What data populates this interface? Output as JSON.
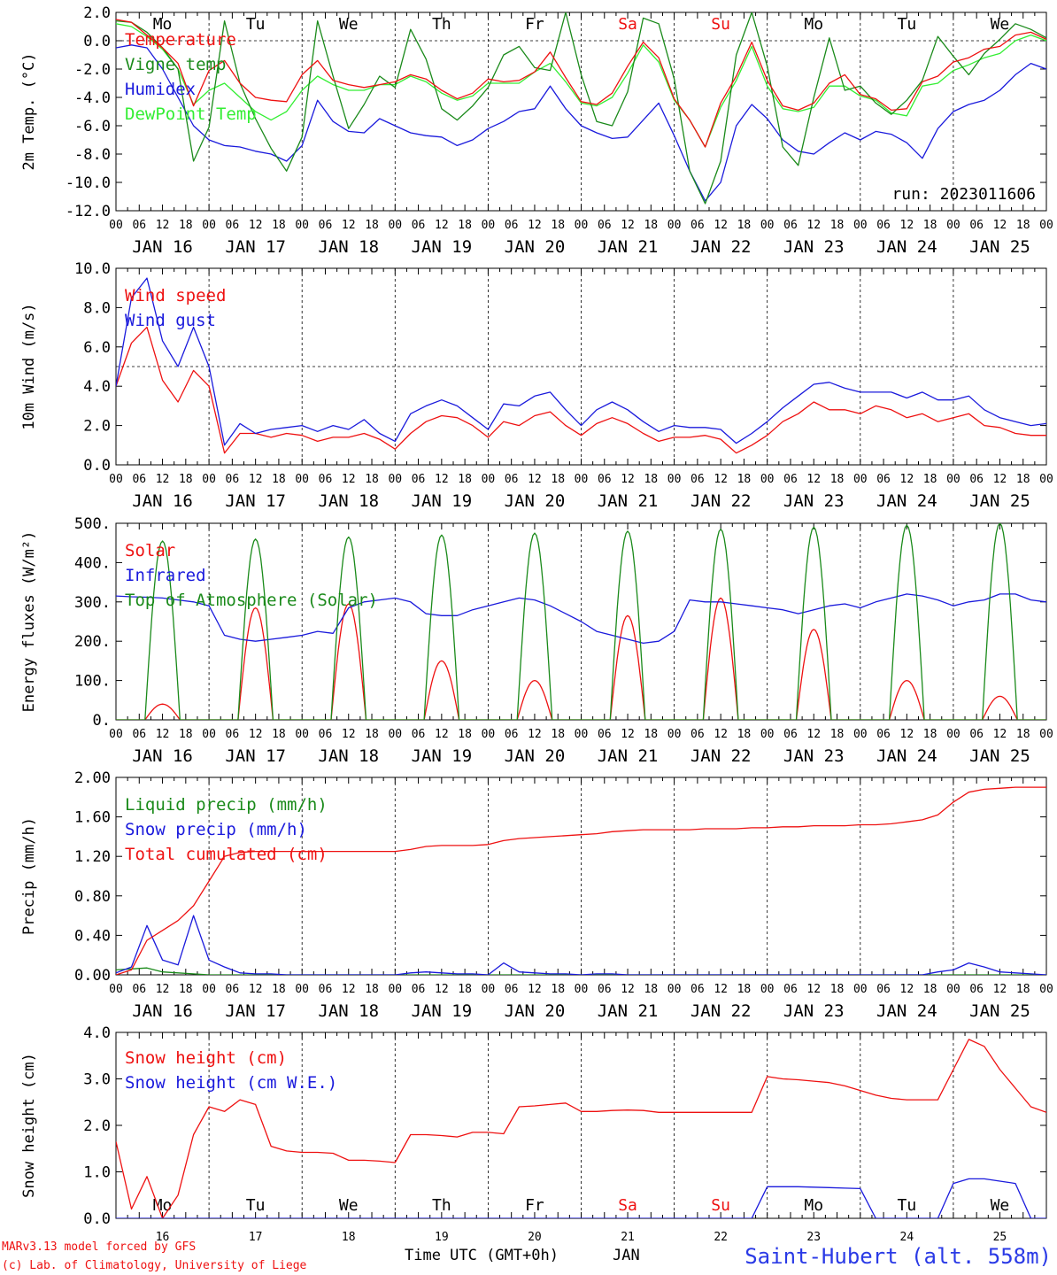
{
  "colors": {
    "red": "#ee1111",
    "green": "#1a8a1a",
    "blue": "#1a1adc",
    "lightgreen": "#33ee33",
    "axis": "#000000",
    "weekend": "#ee1111",
    "station": "#2a3ae6"
  },
  "time_axis": {
    "hour_ticks": [
      "00",
      "06",
      "12",
      "18"
    ],
    "final_tick": "00",
    "dates": [
      "JAN 16",
      "JAN 17",
      "JAN 18",
      "JAN 19",
      "JAN 20",
      "JAN 21",
      "JAN 22",
      "JAN 23",
      "JAN 24",
      "JAN 25"
    ],
    "weekdays": [
      {
        "label": "Mo",
        "weekend": false
      },
      {
        "label": "Tu",
        "weekend": false
      },
      {
        "label": "We",
        "weekend": false
      },
      {
        "label": "Th",
        "weekend": false
      },
      {
        "label": "Fr",
        "weekend": false
      },
      {
        "label": "Sa",
        "weekend": true
      },
      {
        "label": "Su",
        "weekend": true
      },
      {
        "label": "Mo",
        "weekend": false
      },
      {
        "label": "Tu",
        "weekend": false
      },
      {
        "label": "We",
        "weekend": false
      }
    ],
    "day_numbers": [
      "16",
      "17",
      "18",
      "19",
      "20",
      "21",
      "22",
      "23",
      "24",
      "25"
    ],
    "xlabel": "Time UTC (GMT+0h)",
    "month_label": "JAN"
  },
  "footer": {
    "model_line": "MARv3.13 model forced by GFS",
    "credit_line": "(c) Lab. of Climatology, University of Liege",
    "station": "Saint-Hubert (alt. 558m)"
  },
  "chart_data": [
    {
      "type": "line",
      "ylabel": "2m Temp. (°C)",
      "ylim": [
        -12,
        2
      ],
      "yticks": [
        "2.0",
        "0.0",
        "-2.0",
        "-4.0",
        "-6.0",
        "-8.0",
        "-10.0",
        "-12.0"
      ],
      "reference_line": 0,
      "annotation": "run: 2023011606",
      "legend_placement": "top-left",
      "series": [
        {
          "name": "Temperature",
          "color": "red",
          "values": [
            1.5,
            1.3,
            0.4,
            -0.5,
            -1.6,
            -4.6,
            -2.1,
            -1.4,
            -3.0,
            -4.0,
            -4.2,
            -4.3,
            -2.4,
            -1.4,
            -2.8,
            -3.1,
            -3.3,
            -3.1,
            -2.9,
            -2.4,
            -2.7,
            -3.5,
            -4.1,
            -3.7,
            -2.7,
            -2.9,
            -2.8,
            -2.2,
            -0.8,
            -2.6,
            -4.3,
            -4.5,
            -3.7,
            -1.8,
            -0.1,
            -1.2,
            -4.1,
            -5.6,
            -7.5,
            -4.4,
            -2.5,
            -0.1,
            -2.8,
            -4.6,
            -4.9,
            -4.4,
            -3.0,
            -2.4,
            -3.8,
            -4.1,
            -4.9,
            -4.8,
            -2.9,
            -2.5,
            -1.5,
            -1.2,
            -0.6,
            -0.4,
            0.4,
            0.6,
            0.1
          ]
        },
        {
          "name": "Vigne temp",
          "color": "green",
          "values": [
            1.4,
            1.3,
            0.6,
            -0.5,
            -2.0,
            -8.5,
            -6.1,
            1.4,
            -3.0,
            -5.5,
            -7.6,
            -9.2,
            -6.8,
            1.4,
            -2.5,
            -6.2,
            -4.5,
            -2.5,
            -3.3,
            0.8,
            -1.3,
            -4.8,
            -5.6,
            -4.6,
            -3.3,
            -1.0,
            -0.4,
            -1.9,
            -2.1,
            2.0,
            -2.4,
            -5.7,
            -6.0,
            -3.6,
            1.6,
            1.2,
            -2.7,
            -9.2,
            -11.5,
            -8.5,
            -1.0,
            2.0,
            -1.8,
            -7.5,
            -8.8,
            -4.0,
            0.2,
            -3.5,
            -3.2,
            -4.4,
            -5.2,
            -4.2,
            -2.8,
            0.3,
            -1.1,
            -2.4,
            -0.9,
            0.1,
            1.2,
            0.8,
            0.2
          ]
        },
        {
          "name": "Humidex",
          "color": "blue",
          "values": [
            -0.5,
            -0.3,
            -0.5,
            -2.0,
            -4.0,
            -6.0,
            -7.0,
            -7.4,
            -7.5,
            -7.8,
            -8.0,
            -8.5,
            -7.4,
            -4.2,
            -5.7,
            -6.4,
            -6.5,
            -5.5,
            -6.0,
            -6.5,
            -6.7,
            -6.8,
            -7.4,
            -7.0,
            -6.2,
            -5.7,
            -5.0,
            -4.8,
            -3.2,
            -4.8,
            -6.0,
            -6.5,
            -6.9,
            -6.8,
            -5.6,
            -4.4,
            -6.7,
            -9.2,
            -11.3,
            -10.0,
            -6.0,
            -4.5,
            -5.5,
            -7.0,
            -7.8,
            -8.0,
            -7.2,
            -6.5,
            -7.0,
            -6.4,
            -6.6,
            -7.2,
            -8.3,
            -6.2,
            -5.0,
            -4.5,
            -4.2,
            -3.5,
            -2.4,
            -1.6,
            -2.0
          ]
        },
        {
          "name": "DewPoint Temp",
          "color": "lightgreen",
          "values": [
            1.2,
            1.0,
            0.3,
            -0.6,
            -2.0,
            -4.5,
            -3.5,
            -3.0,
            -4.0,
            -5.0,
            -5.6,
            -5.0,
            -3.5,
            -2.5,
            -3.1,
            -3.5,
            -3.5,
            -3.1,
            -3.1,
            -2.5,
            -2.9,
            -3.7,
            -4.2,
            -3.9,
            -3.0,
            -3.0,
            -3.0,
            -2.2,
            -1.6,
            -2.9,
            -4.4,
            -4.6,
            -4.0,
            -2.3,
            -0.3,
            -1.5,
            -4.2,
            -5.6,
            -7.5,
            -4.7,
            -2.8,
            -0.4,
            -3.2,
            -4.8,
            -5.0,
            -4.7,
            -3.2,
            -3.2,
            -3.9,
            -4.2,
            -5.1,
            -5.3,
            -3.2,
            -3.0,
            -2.1,
            -1.7,
            -1.2,
            -0.9,
            0.0,
            0.4,
            0.0
          ]
        }
      ]
    },
    {
      "type": "line",
      "ylabel": "10m Wind (m/s)",
      "ylim": [
        0,
        10
      ],
      "yticks": [
        "10.0",
        "8.0",
        "6.0",
        "4.0",
        "2.0",
        "0.0"
      ],
      "reference_line": 5,
      "legend_placement": "top-left",
      "series": [
        {
          "name": "Wind speed",
          "color": "red",
          "values": [
            4.0,
            6.2,
            7.0,
            4.3,
            3.2,
            4.8,
            4.0,
            0.6,
            1.6,
            1.6,
            1.4,
            1.6,
            1.5,
            1.2,
            1.4,
            1.4,
            1.6,
            1.3,
            0.8,
            1.6,
            2.2,
            2.5,
            2.4,
            2.0,
            1.4,
            2.2,
            2.0,
            2.5,
            2.7,
            2.0,
            1.5,
            2.1,
            2.4,
            2.1,
            1.6,
            1.2,
            1.4,
            1.4,
            1.5,
            1.3,
            0.6,
            1.0,
            1.5,
            2.2,
            2.6,
            3.2,
            2.8,
            2.8,
            2.6,
            3.0,
            2.8,
            2.4,
            2.6,
            2.2,
            2.4,
            2.6,
            2.0,
            1.9,
            1.6,
            1.5,
            1.5
          ]
        },
        {
          "name": "Wind gust",
          "color": "blue",
          "values": [
            4.0,
            8.5,
            9.5,
            6.3,
            5.0,
            7.0,
            5.0,
            1.0,
            2.1,
            1.6,
            1.8,
            1.9,
            2.0,
            1.7,
            2.0,
            1.8,
            2.3,
            1.6,
            1.2,
            2.6,
            3.0,
            3.3,
            3.0,
            2.4,
            1.8,
            3.1,
            3.0,
            3.5,
            3.7,
            2.8,
            2.0,
            2.8,
            3.2,
            2.8,
            2.2,
            1.7,
            2.0,
            1.9,
            1.9,
            1.8,
            1.1,
            1.6,
            2.2,
            2.9,
            3.5,
            4.1,
            4.2,
            3.9,
            3.7,
            3.7,
            3.7,
            3.4,
            3.7,
            3.3,
            3.3,
            3.5,
            2.8,
            2.4,
            2.2,
            2.0,
            2.1
          ]
        }
      ]
    },
    {
      "type": "line",
      "ylabel": "Energy fluxes (W/m²)",
      "ylim": [
        0,
        500
      ],
      "yticks": [
        "500.",
        "400.",
        "300.",
        "200.",
        "100.",
        "0."
      ],
      "legend_placement": "top-left",
      "series": [
        {
          "name": "Solar",
          "color": "red",
          "daily_peak": [
            40,
            285,
            295,
            150,
            100,
            265,
            310,
            230,
            100,
            60
          ]
        },
        {
          "name": "Infrared",
          "color": "blue",
          "values": [
            315,
            313,
            312,
            310,
            305,
            300,
            290,
            215,
            205,
            200,
            205,
            210,
            215,
            225,
            220,
            285,
            300,
            305,
            310,
            300,
            270,
            265,
            265,
            280,
            290,
            300,
            310,
            305,
            290,
            270,
            250,
            225,
            215,
            205,
            195,
            200,
            225,
            305,
            300,
            300,
            295,
            290,
            285,
            280,
            270,
            280,
            290,
            295,
            285,
            300,
            310,
            320,
            315,
            305,
            290,
            300,
            305,
            320,
            320,
            305,
            300
          ]
        },
        {
          "name": "Top of Atmosphere (Solar)",
          "color": "green",
          "daily_peak": [
            455,
            460,
            465,
            470,
            475,
            480,
            485,
            490,
            495,
            500
          ]
        }
      ]
    },
    {
      "type": "line",
      "ylabel": "Precip (mm/h)",
      "ylim": [
        0,
        2
      ],
      "yticks": [
        "2.00",
        "1.60",
        "1.20",
        "0.80",
        "0.40",
        "0.00"
      ],
      "legend_placement": "top-left",
      "series": [
        {
          "name": "Liquid precip (mm/h)",
          "color": "green",
          "values": [
            0.05,
            0.06,
            0.07,
            0.03,
            0.02,
            0.01,
            0.0,
            0.0,
            0.0,
            0.0,
            0.0,
            0.0,
            0.0,
            0.0,
            0.0,
            0.0,
            0.0,
            0.0,
            0.0,
            0.0,
            0.0,
            0.0,
            0.0,
            0.0,
            0.0,
            0.0,
            0.0,
            0.0,
            0.0,
            0.0,
            0.0,
            0.0,
            0.0,
            0.0,
            0.0,
            0.0,
            0.0,
            0.0,
            0.0,
            0.0,
            0.0,
            0.0,
            0.0,
            0.0,
            0.0,
            0.0,
            0.0,
            0.0,
            0.0,
            0.0,
            0.0,
            0.0,
            0.0,
            0.0,
            0.0,
            0.0,
            0.0,
            0.0,
            0.0,
            0.0,
            0.0
          ]
        },
        {
          "name": "Snow precip (mm/h)",
          "color": "blue",
          "values": [
            0.02,
            0.08,
            0.5,
            0.15,
            0.1,
            0.6,
            0.15,
            0.08,
            0.02,
            0.01,
            0.01,
            0.0,
            0.0,
            0.0,
            0.0,
            0.0,
            0.0,
            0.0,
            0.0,
            0.02,
            0.03,
            0.02,
            0.01,
            0.01,
            0.0,
            0.12,
            0.03,
            0.02,
            0.01,
            0.01,
            0.0,
            0.01,
            0.01,
            0.0,
            0.0,
            0.0,
            0.0,
            0.0,
            0.0,
            0.0,
            0.0,
            0.0,
            0.0,
            0.0,
            0.0,
            0.0,
            0.0,
            0.0,
            0.0,
            0.0,
            0.0,
            0.0,
            0.0,
            0.03,
            0.05,
            0.12,
            0.08,
            0.03,
            0.02,
            0.01,
            0.0
          ]
        },
        {
          "name": "Total cumulated (cm)",
          "color": "red",
          "values": [
            0.0,
            0.05,
            0.35,
            0.45,
            0.55,
            0.7,
            0.95,
            1.2,
            1.24,
            1.25,
            1.25,
            1.25,
            1.25,
            1.25,
            1.25,
            1.25,
            1.25,
            1.25,
            1.25,
            1.27,
            1.3,
            1.31,
            1.31,
            1.31,
            1.32,
            1.36,
            1.38,
            1.39,
            1.4,
            1.41,
            1.42,
            1.43,
            1.45,
            1.46,
            1.47,
            1.47,
            1.47,
            1.47,
            1.48,
            1.48,
            1.48,
            1.49,
            1.49,
            1.5,
            1.5,
            1.51,
            1.51,
            1.51,
            1.52,
            1.52,
            1.53,
            1.55,
            1.57,
            1.62,
            1.75,
            1.85,
            1.88,
            1.89,
            1.9,
            1.9,
            1.9
          ]
        }
      ]
    },
    {
      "type": "line",
      "ylabel": "Snow height (cm)",
      "ylim": [
        0,
        4
      ],
      "yticks": [
        "4.0",
        "3.0",
        "2.0",
        "1.0",
        "0.0"
      ],
      "legend_placement": "top-left",
      "series": [
        {
          "name": "Snow height (cm)",
          "color": "red",
          "values": [
            1.65,
            0.2,
            0.9,
            0.0,
            0.5,
            1.8,
            2.4,
            2.3,
            2.55,
            2.45,
            1.55,
            1.45,
            1.42,
            1.42,
            1.4,
            1.25,
            1.25,
            1.23,
            1.2,
            1.8,
            1.8,
            1.78,
            1.75,
            1.85,
            1.85,
            1.82,
            2.4,
            2.42,
            2.45,
            2.48,
            2.3,
            2.3,
            2.32,
            2.33,
            2.32,
            2.28,
            2.28,
            2.28,
            2.28,
            2.28,
            2.28,
            2.28,
            3.05,
            3.0,
            2.98,
            2.95,
            2.92,
            2.85,
            2.75,
            2.65,
            2.58,
            2.55,
            2.55,
            2.55,
            3.2,
            3.85,
            3.7,
            3.2,
            2.8,
            2.4,
            2.28
          ]
        },
        {
          "name": "Snow height (cm W.E.)",
          "color": "blue",
          "values": [
            0.0,
            0.0,
            0.0,
            0.0,
            0.0,
            0.0,
            0.0,
            0.0,
            0.0,
            0.0,
            0.0,
            0.0,
            0.0,
            0.0,
            0.0,
            0.0,
            0.0,
            0.0,
            0.0,
            0.0,
            0.0,
            0.0,
            0.0,
            0.0,
            0.0,
            0.0,
            0.0,
            0.0,
            0.0,
            0.0,
            0.0,
            0.0,
            0.0,
            0.0,
            0.0,
            0.0,
            0.0,
            0.0,
            0.0,
            0.0,
            0.0,
            0.0,
            0.68,
            0.68,
            0.68,
            0.67,
            0.66,
            0.65,
            0.64,
            0.0,
            0.0,
            0.0,
            0.0,
            0.0,
            0.75,
            0.85,
            0.85,
            0.8,
            0.75,
            0.0,
            0.0
          ]
        }
      ]
    }
  ]
}
